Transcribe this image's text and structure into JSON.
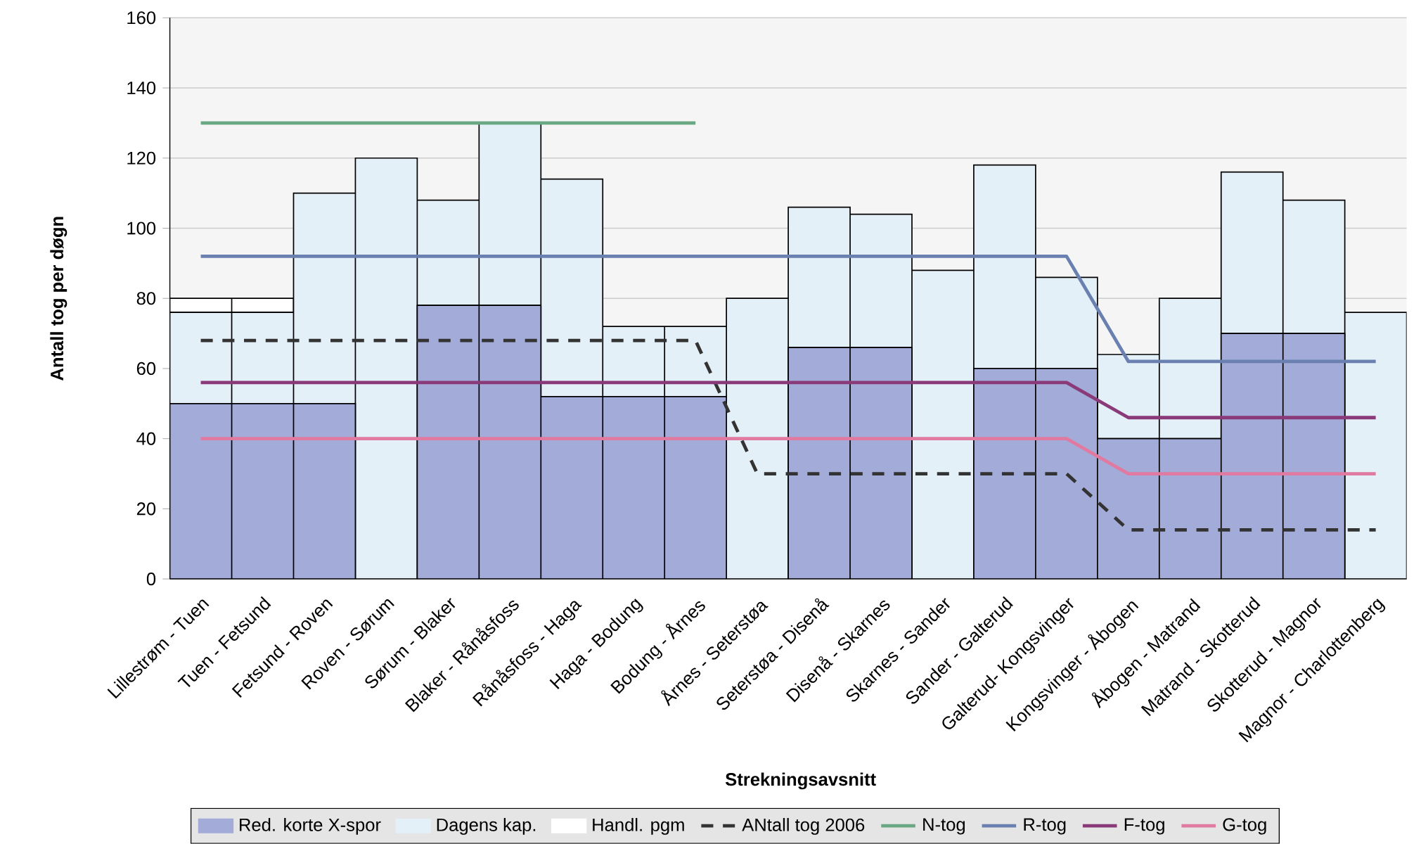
{
  "chart_data": {
    "type": "bar",
    "stacked": true,
    "xlabel": "Strekningsavsnitt",
    "ylabel": "Antall tog per døgn",
    "categories": [
      "Lillestrøm - Tuen",
      "Tuen - Fetsund",
      "Fetsund - Roven",
      "Roven - Sørum",
      "Sørum - Blaker",
      "Blaker - Rånåsfoss",
      "Rånåsfoss - Haga",
      "Haga - Bodung",
      "Bodung - Årnes",
      "Årnes - Seterstøa",
      "Seterstøa - Disenå",
      "Disenå - Skarnes",
      "Skarnes - Sander",
      "Sander - Galterud",
      "Galterud- Kongsvinger",
      "Kongsvinger - Åbogen",
      "Åbogen - Matrand",
      "Matrand - Skotterud",
      "Skotterud - Magnor",
      "Magnor - Charlottenberg"
    ],
    "series": [
      {
        "name": "Red. korte X-spor",
        "color": "#a3acd8",
        "values": [
          50,
          50,
          50,
          null,
          78,
          78,
          52,
          52,
          52,
          null,
          66,
          66,
          null,
          60,
          60,
          40,
          40,
          70,
          70,
          null
        ]
      },
      {
        "name": "Dagens kap.",
        "color": "#e4f0f8",
        "values": [
          26,
          26,
          60,
          120,
          30,
          52,
          62,
          20,
          20,
          80,
          40,
          38,
          88,
          58,
          26,
          24,
          40,
          46,
          38,
          76
        ]
      },
      {
        "name": "Handl. pgm",
        "color": "#ffffff",
        "values": [
          4,
          4,
          null,
          null,
          null,
          null,
          null,
          null,
          null,
          null,
          null,
          null,
          null,
          null,
          null,
          null,
          null,
          null,
          null,
          null
        ]
      },
      {
        "name": "ANtall tog 2006",
        "type": "line",
        "line_style": "dashed",
        "color": "#333333",
        "values": [
          68,
          68,
          68,
          68,
          68,
          68,
          68,
          68,
          68,
          30,
          30,
          30,
          30,
          30,
          30,
          14,
          14,
          14,
          14,
          14
        ]
      },
      {
        "name": "N-tog",
        "type": "line",
        "color": "#6aa884",
        "values": [
          130,
          130,
          130,
          130,
          130,
          130,
          130,
          130,
          130,
          null,
          null,
          null,
          null,
          null,
          null,
          null,
          null,
          null,
          null,
          null
        ]
      },
      {
        "name": "R-tog",
        "type": "line",
        "color": "#6a80b0",
        "values": [
          92,
          92,
          92,
          92,
          92,
          92,
          92,
          92,
          92,
          92,
          92,
          92,
          92,
          92,
          92,
          62,
          62,
          62,
          62,
          62
        ]
      },
      {
        "name": "F-tog",
        "type": "line",
        "color": "#8a3a78",
        "values": [
          56,
          56,
          56,
          56,
          56,
          56,
          56,
          56,
          56,
          56,
          56,
          56,
          56,
          56,
          56,
          46,
          46,
          46,
          46,
          46
        ]
      },
      {
        "name": "G-tog",
        "type": "line",
        "color": "#e07aa0",
        "values": [
          40,
          40,
          40,
          40,
          40,
          40,
          40,
          40,
          40,
          40,
          40,
          40,
          40,
          40,
          40,
          30,
          30,
          30,
          30,
          30
        ]
      }
    ],
    "ylim": [
      0,
      160
    ],
    "yticks": [
      0,
      20,
      40,
      60,
      80,
      100,
      120,
      140,
      160
    ],
    "grid": "y",
    "legend": "bottom"
  }
}
